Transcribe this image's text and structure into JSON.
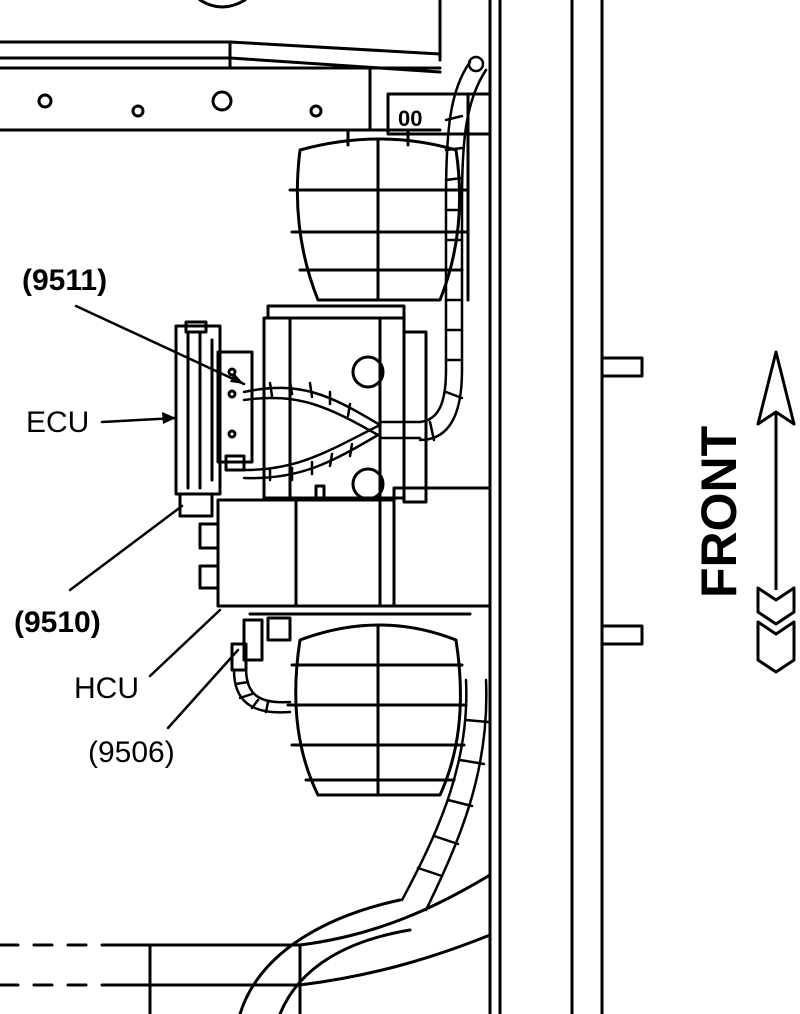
{
  "labels": {
    "ref_9511": "(9511)",
    "ecu": "ECU",
    "ref_9510": "(9510)",
    "hcu": "HCU",
    "ref_9506": "(9506)"
  },
  "direction": {
    "front": "FRONT"
  },
  "colors": {
    "line": "#000000",
    "background": "#ffffff"
  }
}
